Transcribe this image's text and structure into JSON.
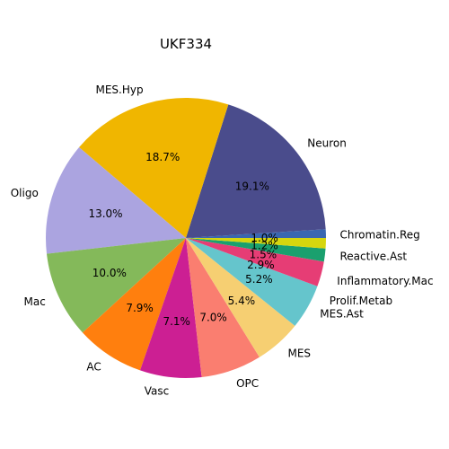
{
  "chart_data": {
    "type": "pie",
    "title": "UKF334",
    "slices": [
      {
        "label": "Chromatin.Reg",
        "value": 1.0,
        "pct_label": "1.0%",
        "color": "#3a67b0"
      },
      {
        "label": "Neuron",
        "value": 19.1,
        "pct_label": "19.1%",
        "color": "#4a4c8c"
      },
      {
        "label": "MES.Hyp",
        "value": 18.7,
        "pct_label": "18.7%",
        "color": "#f0b600"
      },
      {
        "label": "Oligo",
        "value": 13.0,
        "pct_label": "13.0%",
        "color": "#aba4e0"
      },
      {
        "label": "Mac",
        "value": 10.0,
        "pct_label": "10.0%",
        "color": "#84b95a"
      },
      {
        "label": "AC",
        "value": 7.9,
        "pct_label": "7.9%",
        "color": "#ff7f0e"
      },
      {
        "label": "Vasc",
        "value": 7.1,
        "pct_label": "7.1%",
        "color": "#cc1f93"
      },
      {
        "label": "OPC",
        "value": 7.0,
        "pct_label": "7.0%",
        "color": "#fa7e70"
      },
      {
        "label": "MES",
        "value": 5.4,
        "pct_label": "5.4%",
        "color": "#f6cf72"
      },
      {
        "label": "MES.Ast",
        "value": 5.2,
        "pct_label": "5.2%",
        "color": "#65c5cc"
      },
      {
        "label": "Prolif.Metab",
        "value": 2.9,
        "pct_label": "2.9%",
        "color": "#e63d75"
      },
      {
        "label": "Inflammatory.Mac",
        "value": 1.5,
        "pct_label": "1.5%",
        "color": "#1aa06e"
      },
      {
        "label": "Reactive.Ast",
        "value": 1.2,
        "pct_label": "1.2%",
        "color": "#d6d60e"
      }
    ]
  }
}
